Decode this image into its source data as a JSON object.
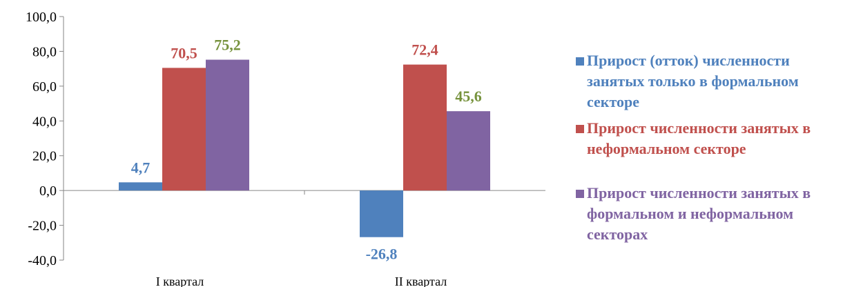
{
  "chart_data": {
    "type": "bar",
    "categories": [
      "I квартал",
      "II квартал"
    ],
    "series": [
      {
        "name": "Прирост (отток) численности занятых только в формальном секторе",
        "values": [
          4.7,
          -26.8
        ],
        "color": "#4f81bd",
        "labels": [
          "4,7",
          "-26,8"
        ]
      },
      {
        "name": "Прирост численности занятых в неформальном секторе",
        "values": [
          70.5,
          72.4
        ],
        "color": "#c0504d",
        "labels": [
          "70,5",
          "72,4"
        ]
      },
      {
        "name": "Прирост численности занятых в формальном и неформальном секторах",
        "values": [
          75.2,
          45.6
        ],
        "color": "#8064a2",
        "labels": [
          "75,2",
          "45,6"
        ]
      }
    ],
    "label_colors": [
      "#4f81bd",
      "#c0504d",
      "#76923c"
    ],
    "y_ticks": [
      "100,0",
      "80,0",
      "60,0",
      "40,0",
      "20,0",
      "0,0",
      "-20,0",
      "-40,0"
    ],
    "ylim": [
      -40,
      100
    ],
    "grid": false,
    "legend_position": "right"
  }
}
